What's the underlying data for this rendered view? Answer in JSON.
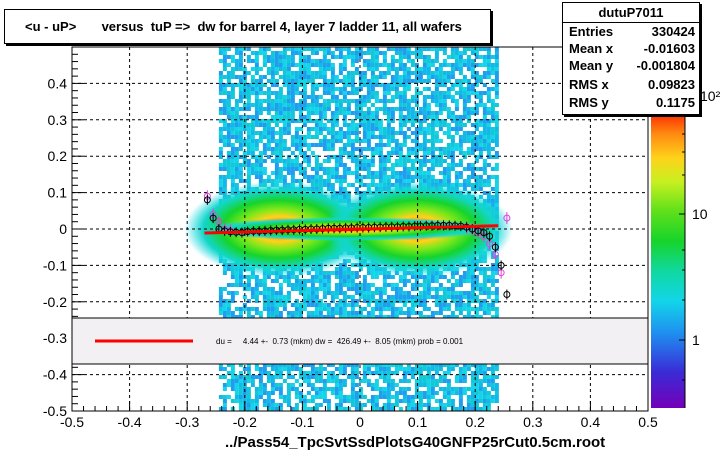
{
  "title": "<u - uP>       versus  tuP =>  dw for barrel 4, layer 7 ladder 11, all wafers",
  "stats": {
    "name": "dutuP7011",
    "rows": [
      {
        "label": "Entries",
        "value": "330424"
      },
      {
        "label": "Mean x",
        "value": "-0.01603"
      },
      {
        "label": "Mean y",
        "value": "-0.001804"
      },
      {
        "label": "RMS x",
        "value": "0.09823"
      },
      {
        "label": "RMS y",
        "value": "0.1175"
      }
    ]
  },
  "fit_legend": "du =     4.44 +-  0.73 (mkm) dw =  426.49 +-  8.05 (mkm) prob = 0.001",
  "xlabel": "../Pass54_TpcSvtSsdPlotsG40GNFP25rCut0.5cm.root",
  "colors": {
    "fit_line": "#ff0000",
    "profile_black": "#000000",
    "profile_magenta": "#e040e0"
  },
  "chart_data": {
    "type": "heatmap",
    "xlim": [
      -0.5,
      0.5
    ],
    "ylim": [
      -0.5,
      0.5
    ],
    "x_ticks": [
      "-0.5",
      "-0.4",
      "-0.3",
      "-0.2",
      "-0.1",
      "0",
      "0.1",
      "0.2",
      "0.3",
      "0.4",
      "0.5"
    ],
    "y_ticks": [
      "-0.5",
      "-0.4",
      "-0.3",
      "-0.2",
      "-0.1",
      "0",
      "0.1",
      "0.2",
      "0.3",
      "0.4"
    ],
    "colorbar_ticks": [
      "1",
      "10",
      "10²"
    ],
    "grid": true,
    "fit_line": {
      "x": [
        -0.27,
        0.24
      ],
      "y": [
        -0.011,
        0.009
      ]
    },
    "profile_black": {
      "x": [
        -0.265,
        -0.255,
        -0.245,
        -0.235,
        -0.225,
        -0.215,
        -0.205,
        -0.195,
        -0.185,
        -0.175,
        -0.165,
        -0.155,
        -0.145,
        -0.135,
        -0.125,
        -0.115,
        -0.105,
        -0.095,
        -0.085,
        -0.075,
        -0.065,
        -0.055,
        -0.045,
        -0.035,
        -0.025,
        -0.015,
        -0.005,
        0.005,
        0.015,
        0.025,
        0.035,
        0.045,
        0.055,
        0.065,
        0.075,
        0.085,
        0.095,
        0.105,
        0.115,
        0.125,
        0.135,
        0.145,
        0.155,
        0.165,
        0.175,
        0.185,
        0.195,
        0.205,
        0.215,
        0.225,
        0.235,
        0.245,
        0.255
      ],
      "y": [
        0.08,
        0.03,
        0.0,
        -0.005,
        -0.008,
        -0.009,
        -0.01,
        -0.007,
        -0.006,
        -0.006,
        -0.005,
        -0.004,
        -0.003,
        -0.003,
        -0.002,
        -0.002,
        -0.001,
        -0.001,
        0.0,
        0.0,
        0.001,
        0.002,
        0.002,
        0.002,
        0.003,
        0.003,
        0.004,
        0.004,
        0.004,
        0.005,
        0.005,
        0.006,
        0.006,
        0.006,
        0.007,
        0.007,
        0.008,
        0.008,
        0.009,
        0.009,
        0.01,
        0.01,
        0.01,
        0.009,
        0.008,
        0.005,
        0.0,
        -0.005,
        -0.01,
        -0.02,
        -0.05,
        -0.1,
        -0.18
      ]
    },
    "profile_magenta": {
      "x": [
        -0.265,
        -0.255,
        -0.245,
        -0.235,
        -0.225,
        0.185,
        0.195,
        0.205,
        0.215,
        0.225,
        0.235,
        0.245,
        0.255
      ],
      "y": [
        0.09,
        0.04,
        0.02,
        0.0,
        -0.004,
        0.004,
        -0.002,
        -0.01,
        -0.02,
        -0.04,
        -0.07,
        -0.12,
        0.03
      ]
    }
  }
}
